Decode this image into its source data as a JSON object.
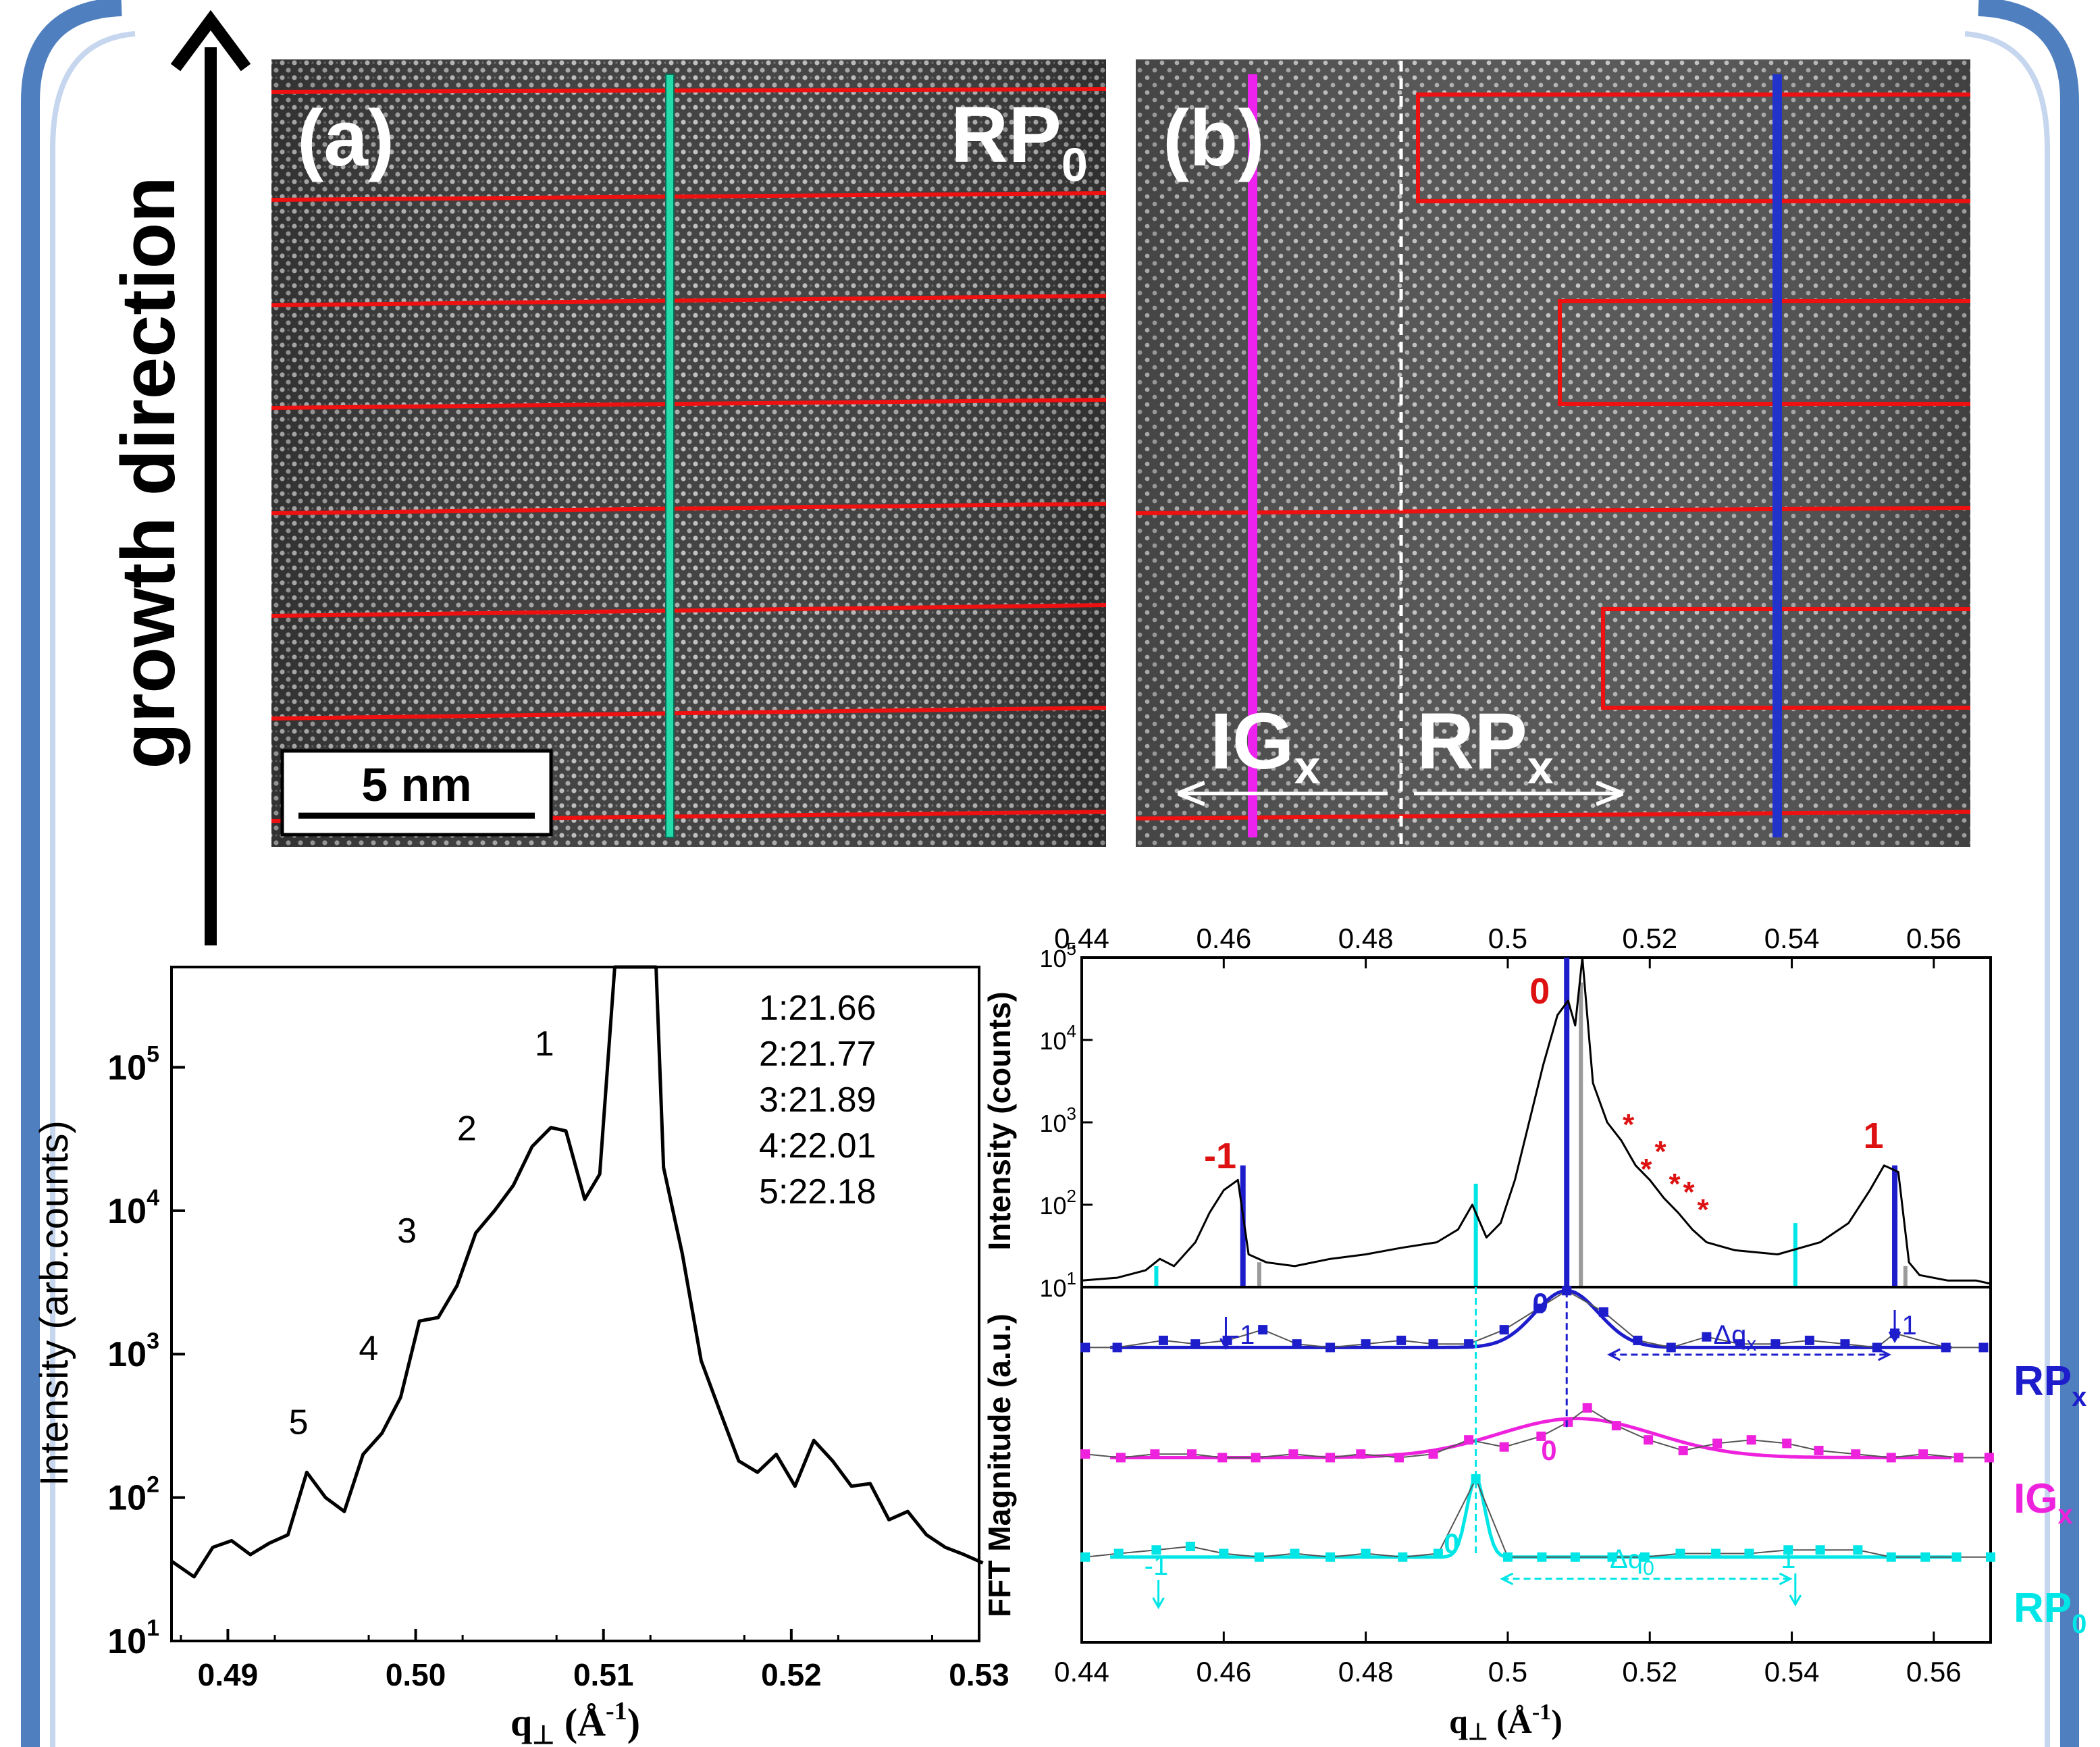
{
  "growth_label": "growth direction",
  "panel_a": {
    "label": "(a)",
    "phase": "RP",
    "phase_sub": "0",
    "scale_bar": "5 nm"
  },
  "panel_b": {
    "label": "(b)",
    "left_region": "IG",
    "left_sub": "x",
    "right_region": "RP",
    "right_sub": "x"
  },
  "chart_data": [
    {
      "type": "line",
      "xlabel": "q",
      "xlabel_sub": "⊥",
      "xlabel_unit": "(Å",
      "xlabel_unit_sup": "-1",
      "xlabel_unit_end": ")",
      "ylabel": "Intensity (arb.counts)",
      "yscale": "log",
      "xlim": [
        0.487,
        0.53
      ],
      "ylim": [
        10,
        500000
      ],
      "xticks": [
        "0.49",
        "0.50",
        "0.51",
        "0.52",
        "0.53"
      ],
      "yticks": [
        "10",
        "10",
        "10",
        "10",
        "10"
      ],
      "ytick_exponents": [
        "1",
        "2",
        "3",
        "4",
        "5"
      ],
      "fringe_labels": [
        "1",
        "2",
        "3",
        "4",
        "5"
      ],
      "legend": [
        "1:21.66",
        "2:21.77",
        "3:21.89",
        "4:22.01",
        "5:22.18"
      ],
      "series": [
        {
          "x": [
            0.487,
            0.4882,
            0.4892,
            0.4902,
            0.4912,
            0.4922,
            0.4932,
            0.4942,
            0.4952,
            0.4962,
            0.4972,
            0.4982,
            0.4992,
            0.5002,
            0.5012,
            0.5022,
            0.5032,
            0.5042,
            0.5052,
            0.5062,
            0.5072,
            0.508,
            0.509,
            0.5098,
            0.5106,
            0.511,
            0.5112,
            0.5128,
            0.5132,
            0.5142,
            0.5152,
            0.5162,
            0.5172,
            0.5182,
            0.5192,
            0.5202,
            0.5212,
            0.5222,
            0.5232,
            0.5242,
            0.5252,
            0.5262,
            0.5272,
            0.5282,
            0.5292,
            0.5302
          ],
          "y": [
            36,
            28,
            45,
            50,
            40,
            48,
            55,
            150,
            100,
            80,
            200,
            280,
            500,
            1700,
            1800,
            3000,
            7000,
            10000,
            15000,
            28000,
            38000,
            36000,
            12000,
            18000,
            500000,
            500000,
            500000,
            500000,
            20000,
            5000,
            900,
            400,
            180,
            150,
            200,
            120,
            250,
            180,
            120,
            125,
            70,
            80,
            55,
            45,
            40,
            35
          ]
        }
      ]
    },
    {
      "type": "line",
      "ylabel": "Intensity (counts)",
      "yscale": "log",
      "xlim": [
        0.44,
        0.568
      ],
      "ylim": [
        10,
        100000
      ],
      "xticks": [
        "0.44",
        "0.46",
        "0.48",
        "0.5",
        "0.52",
        "0.54",
        "0.56"
      ],
      "yticks": [
        "10",
        "10",
        "10",
        "10",
        "10"
      ],
      "ytick_exponents": [
        "1",
        "2",
        "3",
        "4",
        "5"
      ],
      "order_labels": [
        "-1",
        "0",
        "1"
      ],
      "stars": [
        "*",
        "*",
        "*",
        "*",
        "*",
        "*"
      ],
      "series": [
        {
          "x": [
            0.44,
            0.445,
            0.449,
            0.451,
            0.453,
            0.456,
            0.458,
            0.46,
            0.462,
            0.4635,
            0.466,
            0.47,
            0.475,
            0.48,
            0.485,
            0.49,
            0.493,
            0.495,
            0.497,
            0.499,
            0.501,
            0.503,
            0.505,
            0.507,
            0.5085,
            0.5095,
            0.5105,
            0.512,
            0.514,
            0.516,
            0.518,
            0.52,
            0.522,
            0.524,
            0.526,
            0.528,
            0.532,
            0.538,
            0.544,
            0.548,
            0.551,
            0.553,
            0.555,
            0.5565,
            0.558,
            0.562,
            0.566,
            0.568
          ],
          "y": [
            12,
            13,
            16,
            22,
            18,
            35,
            80,
            150,
            200,
            25,
            20,
            18,
            22,
            25,
            30,
            35,
            50,
            100,
            40,
            60,
            200,
            1000,
            5000,
            20000,
            30000,
            15000,
            100000,
            3000,
            1000,
            600,
            300,
            200,
            120,
            80,
            50,
            35,
            28,
            25,
            35,
            60,
            150,
            300,
            250,
            20,
            14,
            12,
            12,
            11
          ]
        }
      ],
      "markers": [
        {
          "name": "RPx",
          "color": "#1d1dcc",
          "x": [
            0.4627,
            0.5083,
            0.5545
          ],
          "y": [
            300,
            100000,
            300
          ]
        },
        {
          "name": "IGx",
          "color": "#00e6e6",
          "x": [
            0.4505,
            0.4955,
            0.5405
          ],
          "y": [
            18,
            180,
            60
          ]
        },
        {
          "name": "RP0",
          "color": "#9a9a9a",
          "x": [
            0.465,
            0.5103,
            0.556
          ],
          "y": [
            20,
            50000,
            18
          ]
        }
      ]
    },
    {
      "type": "line",
      "xlabel": "q",
      "xlabel_sub": "⊥",
      "xlabel_unit": "(Å",
      "xlabel_unit_sup": "-1",
      "xlabel_unit_end": ")",
      "ylabel": "FFT Magnitude (a.u.)",
      "xlim": [
        0.44,
        0.568
      ],
      "ylim": [
        0,
        100
      ],
      "xticks": [
        "0.44",
        "0.46",
        "0.48",
        "0.5",
        "0.52",
        "0.54",
        "0.56"
      ],
      "annotations": {
        "dqx": "Δq",
        "dqx_sub": "x",
        "dq0": "Δq",
        "dq0_sub": "0",
        "zero": "0",
        "minus_one": "-1",
        "one": "1"
      },
      "series": [
        {
          "name": "RP",
          "name_sub": "x",
          "color": "#1d1dcc",
          "x": [
            0.4405,
            0.445,
            0.4515,
            0.456,
            0.4605,
            0.4655,
            0.4703,
            0.475,
            0.48,
            0.485,
            0.4895,
            0.4945,
            0.4995,
            0.5043,
            0.5083,
            0.5135,
            0.5183,
            0.523,
            0.528,
            0.5327,
            0.5377,
            0.5425,
            0.5475,
            0.552,
            0.5545,
            0.5617,
            0.567
          ],
          "y": [
            83,
            83,
            85,
            84,
            85,
            88,
            84,
            83,
            84,
            85,
            84,
            84,
            88,
            94,
            99,
            93,
            85,
            83,
            86,
            84,
            84,
            85,
            84,
            83,
            87,
            83,
            83
          ],
          "fit_center": 0.5083,
          "fit_sigma": 0.0045,
          "fit_base": 83,
          "fit_peak": 99
        },
        {
          "name": "IG",
          "name_sub": "x",
          "color": "#ee22dd",
          "x": [
            0.4405,
            0.4455,
            0.4503,
            0.4555,
            0.4598,
            0.4645,
            0.4698,
            0.475,
            0.4793,
            0.4847,
            0.4895,
            0.4945,
            0.4995,
            0.5047,
            0.5085,
            0.5112,
            0.5153,
            0.5198,
            0.5247,
            0.5295,
            0.5343,
            0.5393,
            0.5438,
            0.549,
            0.554,
            0.5585,
            0.5635,
            0.5678
          ],
          "y": [
            53,
            52,
            53,
            53,
            52,
            52,
            53,
            52,
            53,
            52,
            53,
            57,
            55,
            58,
            62,
            66,
            61,
            57,
            54,
            56,
            57,
            56,
            54,
            53,
            52,
            53,
            52,
            52
          ],
          "fit_center": 0.5097,
          "fit_sigma": 0.011,
          "fit_base": 52,
          "fit_peak": 63
        },
        {
          "name": "RP",
          "name_sub": "0",
          "color": "#00e6e6",
          "x": [
            0.4405,
            0.4452,
            0.4505,
            0.4553,
            0.46,
            0.465,
            0.47,
            0.475,
            0.48,
            0.4852,
            0.4902,
            0.4955,
            0.5,
            0.5048,
            0.5095,
            0.5147,
            0.5193,
            0.5243,
            0.5293,
            0.534,
            0.5395,
            0.544,
            0.5493,
            0.554,
            0.5588,
            0.5632,
            0.568
          ],
          "y": [
            24,
            25,
            26,
            27,
            25,
            24,
            25,
            24,
            25,
            24,
            25,
            46,
            24,
            24,
            24,
            24,
            24,
            25,
            25,
            25,
            26,
            26,
            26,
            24,
            24,
            24,
            24
          ],
          "fit_center": 0.4955,
          "fit_sigma": 0.0013,
          "fit_base": 24,
          "fit_peak": 46
        }
      ]
    }
  ]
}
